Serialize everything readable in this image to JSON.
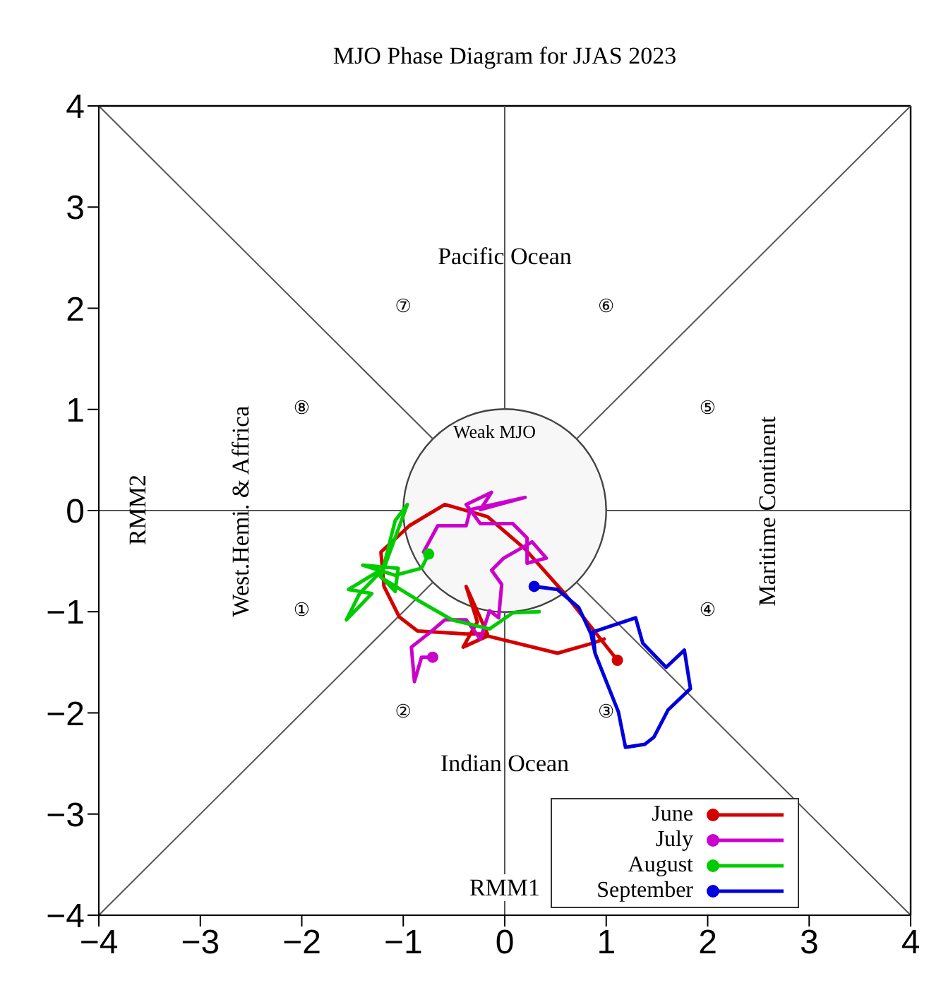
{
  "chart_data": {
    "type": "line",
    "title": "MJO Phase Diagram for JJAS 2023",
    "xlabel": "RMM1",
    "ylabel": "RMM2",
    "xlim": [
      -4,
      4
    ],
    "ylim": [
      -4,
      4
    ],
    "xticks": [
      -4,
      -3,
      -2,
      -1,
      0,
      1,
      2,
      3,
      4
    ],
    "yticks": [
      -4,
      -3,
      -2,
      -1,
      0,
      1,
      2,
      3,
      4
    ],
    "legend": "bottom right",
    "annotations": [
      "Pacific Ocean",
      "Indian Ocean",
      "West.Hemi. & Affrica",
      "Maritime Continent",
      "Weak MJO",
      "①",
      "②",
      "③",
      "④",
      "⑤",
      "⑥",
      "⑦",
      "⑧"
    ],
    "series": [
      {
        "type": "line",
        "color": "#555555",
        "x": [
          -4,
          -0.71
        ],
        "values": [
          4,
          0.71
        ]
      },
      {
        "type": "line",
        "color": "#555555",
        "x": [
          4,
          0.71
        ],
        "values": [
          4,
          0.71
        ]
      },
      {
        "type": "line",
        "color": "#555555",
        "x": [
          -4,
          -0.71
        ],
        "values": [
          -4,
          -0.71
        ]
      },
      {
        "type": "line",
        "color": "#555555",
        "x": [
          4,
          0.71
        ],
        "values": [
          -4,
          -0.71
        ]
      },
      {
        "type": "line",
        "color": "#555555",
        "x": [
          -4,
          -1
        ],
        "values": [
          0,
          0
        ]
      },
      {
        "type": "line",
        "color": "#555555",
        "x": [
          1,
          4
        ],
        "values": [
          0,
          0
        ]
      },
      {
        "type": "line",
        "color": "#555555",
        "x": [
          0,
          0
        ],
        "values": [
          1,
          4
        ]
      },
      {
        "type": "line",
        "color": "#555555",
        "x": [
          0,
          0
        ],
        "values": [
          -1,
          -4
        ]
      },
      {
        "name": "June",
        "color": "#d40000",
        "x": [
          1.11,
          0.59,
          0.2,
          -0.17,
          -0.59,
          -0.94,
          -1.22,
          -1.19,
          -1.04,
          -0.86,
          -0.38,
          -0.17,
          -0.38,
          -0.27,
          -0.41,
          -0.17,
          0.52,
          0.87,
          0.98
        ],
        "values": [
          -1.48,
          -0.82,
          -0.38,
          -0.06,
          0.06,
          -0.15,
          -0.41,
          -0.75,
          -1.05,
          -1.19,
          -1.22,
          -1.22,
          -0.75,
          -1.1,
          -1.35,
          -1.24,
          -1.41,
          -1.31,
          -1.27
        ]
      },
      {
        "name": "July",
        "color": "#cc00cc",
        "x": [
          -0.71,
          -0.82,
          -0.89,
          -0.92,
          -0.73,
          -0.59,
          -0.38,
          -0.24,
          -0.15,
          -0.06,
          -0.03,
          -0.13,
          -0.01,
          0.27,
          0.41,
          0.22,
          0.22,
          0.08,
          -0.24,
          -0.38,
          -0.13,
          -0.24,
          0.2,
          -0.34,
          -0.38,
          -0.66,
          -0.8
        ],
        "values": [
          -1.45,
          -1.45,
          -1.69,
          -1.35,
          -1.2,
          -1.08,
          -1.08,
          -1.27,
          -0.99,
          -1.06,
          -0.73,
          -0.59,
          -0.47,
          -0.31,
          -0.47,
          -0.52,
          -0.27,
          -0.13,
          -0.13,
          0.06,
          0.18,
          0.01,
          0.13,
          0.01,
          -0.15,
          -0.15,
          -0.41
        ]
      },
      {
        "name": "August",
        "color": "#00cc00",
        "x": [
          -0.75,
          -0.82,
          -1.08,
          -1.4,
          -1.05,
          -1.08,
          -1.26,
          -1.54,
          -1.31,
          -1.56,
          -1.43,
          -1.19,
          -0.96,
          -1.08,
          -1.22,
          -0.85,
          -0.52,
          -0.15,
          0.08,
          0.34
        ],
        "values": [
          -0.43,
          -0.57,
          -0.64,
          -0.54,
          -0.57,
          -0.8,
          -0.61,
          -0.78,
          -0.82,
          -1.08,
          -0.82,
          -0.57,
          0.06,
          -0.1,
          -0.66,
          -0.89,
          -1.08,
          -1.17,
          -1.01,
          -1.0
        ]
      },
      {
        "name": "September",
        "color": "#0000dd",
        "x": [
          0.29,
          0.52,
          0.73,
          0.85,
          0.89,
          0.87,
          1.29,
          1.36,
          1.59,
          1.77,
          1.83,
          1.61,
          1.47,
          1.38,
          1.19,
          1.12,
          0.89
        ],
        "values": [
          -0.75,
          -0.78,
          -0.96,
          -1.22,
          -1.41,
          -1.2,
          -1.06,
          -1.31,
          -1.55,
          -1.38,
          -1.76,
          -1.97,
          -2.24,
          -2.31,
          -2.34,
          -1.99,
          -1.41
        ]
      }
    ]
  }
}
